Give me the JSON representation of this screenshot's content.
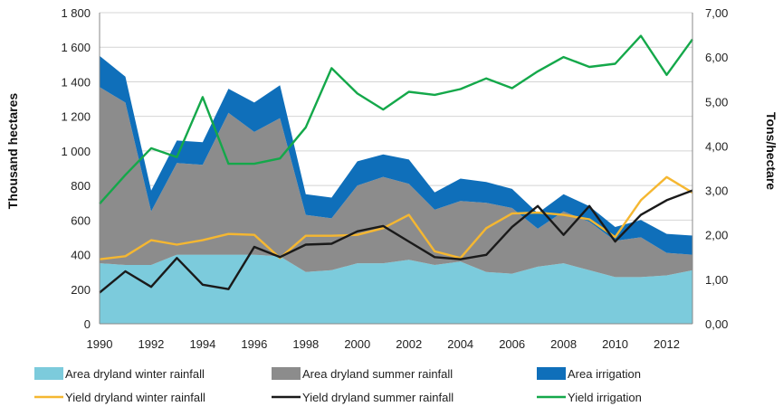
{
  "chart_data": {
    "type": "area+line",
    "x": [
      1990,
      1991,
      1992,
      1993,
      1994,
      1995,
      1996,
      1997,
      1998,
      1999,
      2000,
      2001,
      2002,
      2003,
      2004,
      2005,
      2006,
      2007,
      2008,
      2009,
      2010,
      2011,
      2012,
      2013
    ],
    "x_tick_labels": [
      "1990",
      "1992",
      "1994",
      "1996",
      "1998",
      "2000",
      "2002",
      "2004",
      "2006",
      "2008",
      "2010",
      "2012"
    ],
    "xlim": [
      1990,
      2013
    ],
    "left_axis": {
      "label": "Thousand hectares",
      "ylim": [
        0,
        1800
      ],
      "tick_labels": [
        "0",
        "200",
        "400",
        "600",
        "800",
        "1 000",
        "1 200",
        "1 400",
        "1 600",
        "1 800"
      ],
      "tick_values": [
        0,
        200,
        400,
        600,
        800,
        1000,
        1200,
        1400,
        1600,
        1800
      ]
    },
    "right_axis": {
      "label": "Tons/hectare",
      "ylim": [
        0,
        7
      ],
      "tick_labels": [
        "0,00",
        "1,00",
        "2,00",
        "3,00",
        "4,00",
        "5,00",
        "6,00",
        "7,00"
      ],
      "tick_values": [
        0,
        1,
        2,
        3,
        4,
        5,
        6,
        7
      ]
    },
    "area_series": [
      {
        "name": "Area dryland winter rainfall",
        "color": "#7ccbdc",
        "values": [
          350,
          340,
          340,
          400,
          400,
          400,
          400,
          390,
          300,
          310,
          350,
          350,
          370,
          340,
          360,
          300,
          290,
          330,
          350,
          310,
          270,
          270,
          280,
          310
        ]
      },
      {
        "name": "Area dryland summer rainfall",
        "color": "#8c8c8c",
        "values": [
          1020,
          940,
          310,
          530,
          520,
          820,
          710,
          800,
          330,
          300,
          450,
          500,
          440,
          320,
          350,
          400,
          380,
          220,
          300,
          280,
          210,
          230,
          130,
          90
        ]
      },
      {
        "name": "Area irrigation",
        "color": "#0f6fba",
        "values": [
          180,
          150,
          120,
          130,
          130,
          140,
          170,
          190,
          120,
          120,
          140,
          130,
          140,
          100,
          130,
          120,
          110,
          90,
          100,
          90,
          80,
          100,
          110,
          110
        ]
      }
    ],
    "line_series": [
      {
        "name": "Yield dryland winter rainfall",
        "color": "#f5b731",
        "values": [
          1.45,
          1.52,
          1.88,
          1.78,
          1.88,
          2.02,
          2.0,
          1.48,
          1.98,
          1.98,
          2.0,
          2.15,
          2.45,
          1.63,
          1.48,
          2.15,
          2.48,
          2.5,
          2.45,
          2.35,
          1.95,
          2.78,
          3.3,
          2.95
        ]
      },
      {
        "name": "Yield dryland summer rainfall",
        "color": "#1a1a1a",
        "values": [
          0.7,
          1.18,
          0.83,
          1.48,
          0.88,
          0.78,
          1.73,
          1.5,
          1.78,
          1.8,
          2.08,
          2.2,
          1.85,
          1.5,
          1.45,
          1.55,
          2.18,
          2.65,
          2.0,
          2.65,
          1.85,
          2.45,
          2.78,
          3.0
        ]
      },
      {
        "name": "Yield irrigation",
        "color": "#14a84a",
        "values": [
          2.7,
          3.35,
          3.95,
          3.75,
          5.1,
          3.6,
          3.6,
          3.72,
          4.42,
          5.75,
          5.18,
          4.82,
          5.22,
          5.15,
          5.28,
          5.52,
          5.3,
          5.68,
          6.0,
          5.78,
          5.85,
          6.48,
          5.6,
          6.4
        ]
      }
    ],
    "legend": {
      "placement": "bottom",
      "entries": [
        {
          "label": "Area dryland winter rainfall",
          "kind": "area",
          "color": "#7ccbdc"
        },
        {
          "label": "Area dryland summer rainfall",
          "kind": "area",
          "color": "#8c8c8c"
        },
        {
          "label": "Area irrigation",
          "kind": "area",
          "color": "#0f6fba"
        },
        {
          "label": "Yield dryland winter rainfall",
          "kind": "line",
          "color": "#f5b731"
        },
        {
          "label": "Yield dryland summer rainfall",
          "kind": "line",
          "color": "#1a1a1a"
        },
        {
          "label": "Yield irrigation",
          "kind": "line",
          "color": "#14a84a"
        }
      ]
    },
    "grid": "horizontal"
  }
}
